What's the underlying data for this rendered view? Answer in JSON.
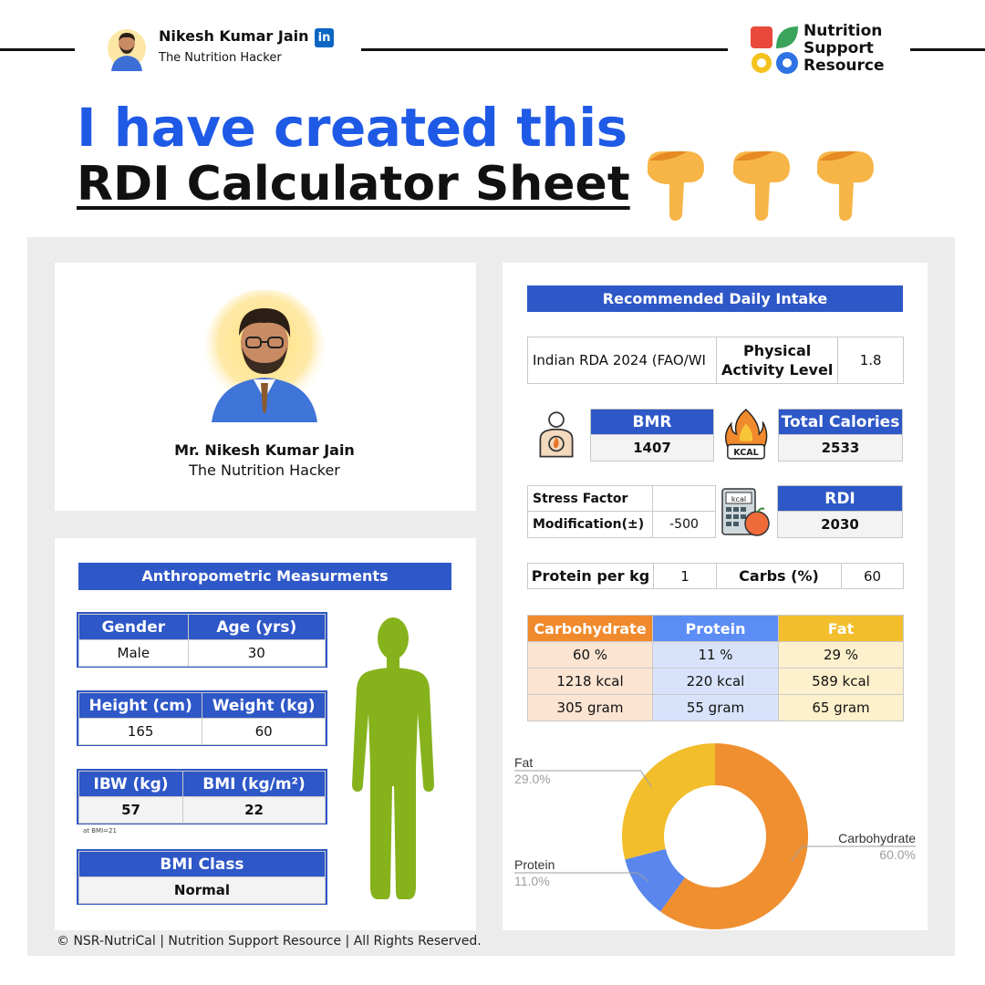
{
  "header": {
    "author_name": "Nikesh Kumar Jain",
    "linkedin_badge": "in",
    "author_tagline": "The Nutrition Hacker",
    "brand_line1": "Nutrition",
    "brand_line2": "Support",
    "brand_line3": "Resource",
    "headline_line1": "I have created this",
    "headline_line2": "RDI Calculator Sheet",
    "pointing_icons": [
      "backhand-index-pointing-down-icon",
      "backhand-index-pointing-down-icon",
      "backhand-index-pointing-down-icon"
    ]
  },
  "profile": {
    "name": "Mr. Nikesh Kumar Jain",
    "title": "The Nutrition Hacker"
  },
  "anthropometric": {
    "title": "Anthropometric Measurments",
    "gender_label": "Gender",
    "gender_value": "Male",
    "age_label": "Age (yrs)",
    "age_value": "30",
    "height_label": "Height (cm)",
    "height_value": "165",
    "weight_label": "Weight (kg)",
    "weight_value": "60",
    "ibw_label": "IBW (kg)",
    "ibw_value": "57",
    "bmi_label": "BMI (kg/m²)",
    "bmi_value": "22",
    "ibw_note": "at BMI=21",
    "bmi_class_label": "BMI Class",
    "bmi_class_value": "Normal"
  },
  "rdi": {
    "title": "Recommended Daily Intake",
    "standard": "Indian RDA 2024 (FAO/WI",
    "pal_label": "Physical Activity Level",
    "pal_value": "1.8",
    "bmr_label": "BMR",
    "bmr_value": "1407",
    "total_cal_label": "Total Calories",
    "total_cal_value": "2533",
    "stress_label": "Stress Factor",
    "stress_value": "",
    "modification_label": "Modification(±)",
    "modification_value": "-500",
    "rdi_label": "RDI",
    "rdi_value": "2030",
    "protein_per_kg_label": "Protein per kg",
    "protein_per_kg_value": "1",
    "carbs_pct_label": "Carbs (%)",
    "carbs_pct_value": "60",
    "kcal_icon_text": "KCAL",
    "calc_icon_text": "kcal"
  },
  "macros": {
    "headers": [
      "Carbohydrate",
      "Protein",
      "Fat"
    ],
    "header_colors": [
      "#f08a2c",
      "#5b8df5",
      "#f2be2b"
    ],
    "cell_colors": [
      "#fbe4d2",
      "#d8e3fb",
      "#fdf0cc"
    ],
    "rows": [
      [
        "60  %",
        "11  %",
        "29  %"
      ],
      [
        "1218  kcal",
        "220  kcal",
        "589  kcal"
      ],
      [
        "305  gram",
        "55  gram",
        "65  gram"
      ]
    ]
  },
  "footer": {
    "copyright": "© NSR-NutriCal | Nutrition Support Resource | All Rights Reserved."
  },
  "chart_data": {
    "type": "pie",
    "title": "",
    "donut": true,
    "categories": [
      "Carbohydrate",
      "Protein",
      "Fat"
    ],
    "values": [
      60.0,
      11.0,
      29.0
    ],
    "value_labels": [
      "60.0%",
      "11.0%",
      "29.0%"
    ],
    "colors": [
      "#ef8f30",
      "#5b86ee",
      "#f2be2b"
    ]
  }
}
